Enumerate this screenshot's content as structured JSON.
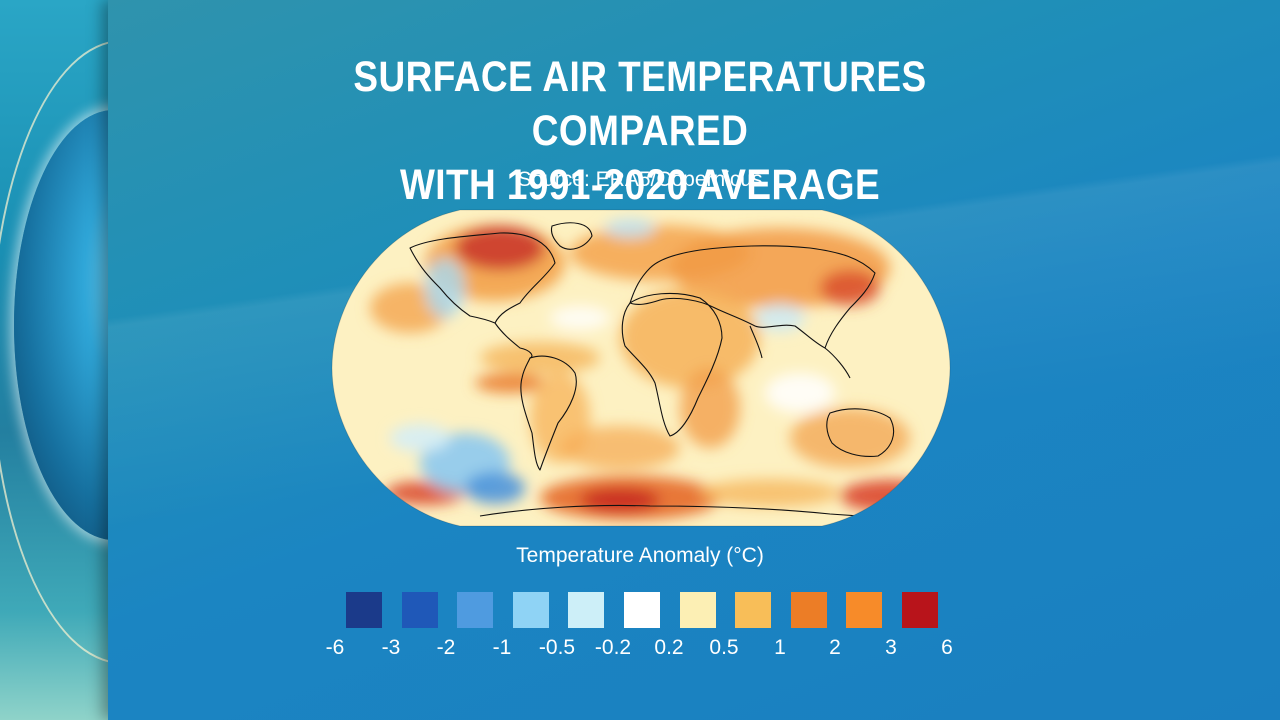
{
  "title_lines": [
    "Surface air temperatures compared",
    "with 1991-2020 average"
  ],
  "source": "Source: ERA5/Copernicus",
  "legend": {
    "title": "Temperature Anomaly (°C)",
    "swatch_colors": [
      "#1b3a8a",
      "#1f58b8",
      "#4f9be0",
      "#8fd3f5",
      "#cdeff8",
      "#ffffff",
      "#fcefb4",
      "#f8be58",
      "#ec7d26",
      "#f78b29",
      "#b8141b"
    ],
    "tick_labels": [
      "-6",
      "-3",
      "-2",
      "-1",
      "-0.5",
      "-0.2",
      "0.2",
      "0.5",
      "1",
      "2",
      "3",
      "6"
    ]
  },
  "colors": {
    "panel": "#1f8fb8",
    "map_base": "#fdf1c2",
    "coastline": "#111111"
  }
}
